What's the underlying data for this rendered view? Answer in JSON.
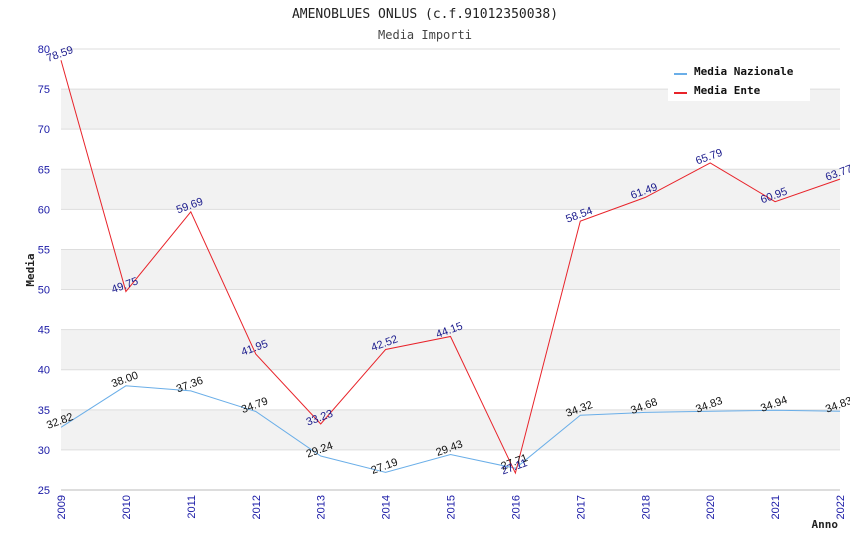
{
  "chart_data": {
    "type": "line",
    "title": "AMENOBLUES ONLUS (c.f.91012350038)",
    "subtitle": "Media Importi",
    "xlabel": "Anno",
    "ylabel": "Media",
    "categories": [
      "2009",
      "2010",
      "2011",
      "2012",
      "2013",
      "2014",
      "2015",
      "2016",
      "2017",
      "2018",
      "2020",
      "2021",
      "2022"
    ],
    "ylim": [
      25,
      80
    ],
    "yticks": [
      25,
      30,
      35,
      40,
      45,
      50,
      55,
      60,
      65,
      70,
      75,
      80
    ],
    "grid": true,
    "legend_position": "top-right",
    "series": [
      {
        "name": "Media Nazionale",
        "color": "#6aaee8",
        "label_color": "#111111",
        "values": [
          32.82,
          38.0,
          37.36,
          34.79,
          29.24,
          27.19,
          29.43,
          27.71,
          34.32,
          34.68,
          34.83,
          34.94,
          34.83
        ],
        "labels": [
          "32.82",
          "38.00",
          "37.36",
          "34.79",
          "29.24",
          "27.19",
          "29.43",
          "27.71",
          "34.32",
          "34.68",
          "34.83",
          "34.94",
          "34.83"
        ]
      },
      {
        "name": "Media Ente",
        "color": "#e8232a",
        "label_color": "#1a1a8c",
        "values": [
          78.59,
          49.75,
          59.69,
          41.95,
          33.23,
          42.52,
          44.15,
          27.11,
          58.54,
          61.49,
          65.79,
          60.95,
          63.77
        ],
        "labels": [
          "78.59",
          "49.75",
          "59.69",
          "41.95",
          "33.23",
          "42.52",
          "44.15",
          "27.11",
          "58.54",
          "61.49",
          "65.79",
          "60.95",
          "63.77"
        ]
      }
    ]
  }
}
